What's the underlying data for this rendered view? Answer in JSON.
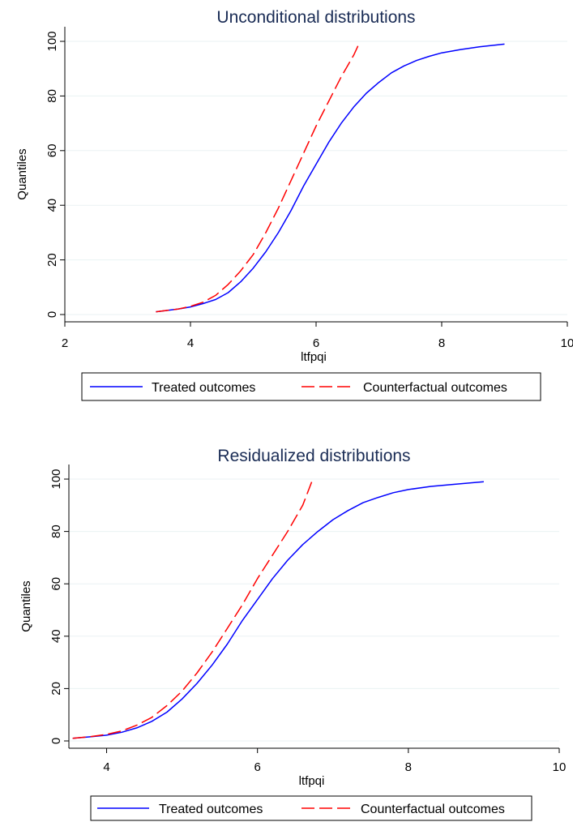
{
  "chart_data": [
    {
      "type": "line",
      "title": "Unconditional distributions",
      "xlabel": "ltfpqi",
      "ylabel": "Quantiles",
      "xlim": [
        2,
        10
      ],
      "ylim": [
        0,
        100
      ],
      "xticks": [
        "2",
        "4",
        "6",
        "8",
        "10"
      ],
      "yticks": [
        "0",
        "20",
        "40",
        "60",
        "80",
        "100"
      ],
      "grid": true,
      "legend_placement": "bottom",
      "series": [
        {
          "name": "Treated outcomes",
          "color": "#0000ff",
          "dash": "solid",
          "x": [
            3.45,
            3.8,
            4.0,
            4.2,
            4.4,
            4.6,
            4.8,
            5.0,
            5.2,
            5.4,
            5.6,
            5.8,
            6.0,
            6.2,
            6.4,
            6.6,
            6.8,
            7.0,
            7.2,
            7.4,
            7.6,
            7.8,
            8.0,
            8.3,
            8.6,
            9.0
          ],
          "y": [
            1,
            2,
            2.8,
            4,
            5.5,
            8,
            12,
            17,
            23,
            30,
            38,
            47,
            55,
            63,
            70,
            76,
            81,
            85,
            88.5,
            91,
            93,
            94.5,
            95.8,
            97,
            98,
            99
          ]
        },
        {
          "name": "Counterfactual outcomes",
          "color": "#ff0000",
          "dash": "dashed",
          "x": [
            3.45,
            3.8,
            4.0,
            4.2,
            4.4,
            4.6,
            4.8,
            5.0,
            5.2,
            5.4,
            5.6,
            5.8,
            6.0,
            6.2,
            6.4,
            6.6,
            6.68
          ],
          "y": [
            1,
            2,
            3,
            4.5,
            7,
            11,
            16,
            22,
            30,
            39,
            49,
            59,
            69,
            78,
            87,
            95,
            99
          ]
        }
      ]
    },
    {
      "type": "line",
      "title": "Residualized distributions",
      "xlabel": "ltfpqi",
      "ylabel": "Quantiles",
      "xlim": [
        3.5,
        10
      ],
      "ylim": [
        0,
        100
      ],
      "xticks": [
        "4",
        "6",
        "8",
        "10"
      ],
      "yticks": [
        "0",
        "20",
        "40",
        "60",
        "80",
        "100"
      ],
      "grid": true,
      "legend_placement": "bottom",
      "series": [
        {
          "name": "Treated outcomes",
          "color": "#0000ff",
          "dash": "solid",
          "x": [
            3.55,
            3.8,
            4.0,
            4.2,
            4.4,
            4.6,
            4.8,
            5.0,
            5.2,
            5.4,
            5.6,
            5.8,
            6.0,
            6.2,
            6.4,
            6.6,
            6.8,
            7.0,
            7.2,
            7.4,
            7.6,
            7.8,
            8.0,
            8.3,
            8.6,
            9.0
          ],
          "y": [
            1,
            1.6,
            2.2,
            3.3,
            5,
            7.5,
            11,
            16,
            22,
            29,
            37,
            46,
            54,
            62,
            69,
            75,
            80,
            84.5,
            88,
            91,
            93,
            94.8,
            96,
            97.2,
            98,
            99
          ]
        },
        {
          "name": "Counterfactual outcomes",
          "color": "#ff0000",
          "dash": "dashed",
          "x": [
            3.55,
            3.8,
            4.0,
            4.2,
            4.4,
            4.6,
            4.8,
            5.0,
            5.2,
            5.4,
            5.6,
            5.8,
            6.0,
            6.2,
            6.4,
            6.6,
            6.72
          ],
          "y": [
            1,
            1.7,
            2.5,
            3.8,
            6,
            9,
            13.5,
            19,
            26,
            34,
            43,
            52,
            62,
            71,
            80,
            90,
            99
          ]
        }
      ]
    }
  ]
}
